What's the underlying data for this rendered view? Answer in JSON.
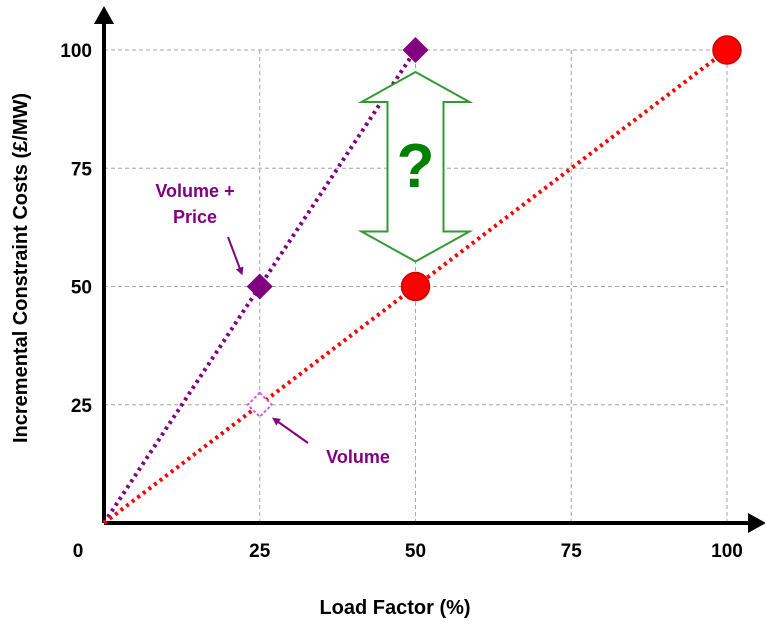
{
  "chart_data": {
    "type": "line",
    "xlabel": "Load Factor (%)",
    "ylabel": "Incremental Constraint Costs (£/MW)",
    "origin_label": "0",
    "x_ticks": [
      25,
      50,
      75,
      100
    ],
    "y_ticks": [
      25,
      50,
      75,
      100
    ],
    "xlim": [
      0,
      100
    ],
    "ylim": [
      0,
      100
    ],
    "grid": true,
    "series": [
      {
        "name": "Volume + Price",
        "color": "#800080",
        "line_style": "dotted",
        "marker": "diamond",
        "points": [
          {
            "x": 0,
            "y": 0,
            "marker": false
          },
          {
            "x": 25,
            "y": 50,
            "marker": true
          },
          {
            "x": 50,
            "y": 100,
            "marker": true
          }
        ]
      },
      {
        "name": "Volume",
        "color": "#ff0000",
        "line_style": "dotted",
        "marker": "circle",
        "points": [
          {
            "x": 0,
            "y": 0,
            "marker": false
          },
          {
            "x": 50,
            "y": 50,
            "marker": true
          },
          {
            "x": 100,
            "y": 100,
            "marker": true
          }
        ]
      }
    ],
    "hollow_marker": {
      "x": 25,
      "y": 25,
      "shape": "diamond",
      "color": "#cc66cc"
    },
    "annotations": [
      {
        "id": "vp",
        "lines": [
          "Volume +",
          "Price"
        ],
        "color": "#800080",
        "points_to": {
          "x": 25,
          "y": 50
        }
      },
      {
        "id": "vol",
        "lines": [
          "Volume"
        ],
        "color": "#800080",
        "points_to": {
          "x": 25,
          "y": 25
        }
      }
    ],
    "gap_marker": {
      "label": "?",
      "x": 50,
      "y_from": 50,
      "y_to": 100,
      "fill": "#ffffff",
      "stroke": "#339933",
      "text_color": "#008000"
    }
  }
}
